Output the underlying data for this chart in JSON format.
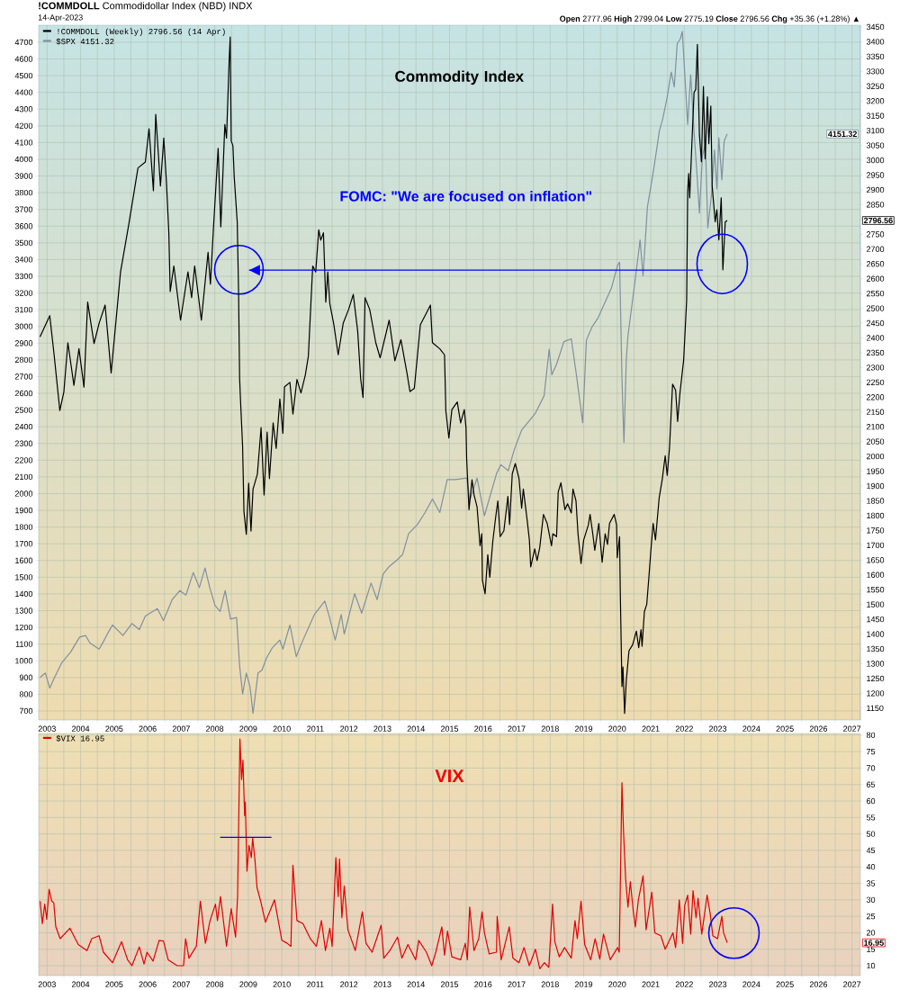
{
  "chart_data": [
    {
      "type": "line",
      "title": "**!COMMDOLL** Commodidollar Index (NBD) INDX",
      "subtitle": "14-Apr-2023",
      "annotations": [
        "**Open** 2777.96 **High** 2799.04 **Low** 2775.19 **Close** 2796.56 **Chg** +35.36 (+1.28%) ▲",
        "Commodity Index",
        "FOMC: \"We are focused on inflation\"",
        "4151.32",
        "2796.56"
      ],
      "xlim": [
        2002.75,
        2027.25
      ],
      "xticks": [
        2003,
        2004,
        2005,
        2006,
        2007,
        2008,
        2009,
        2010,
        2011,
        2012,
        2013,
        2014,
        2015,
        2016,
        2017,
        2018,
        2019,
        2020,
        2021,
        2022,
        2023,
        2024,
        2025,
        2026,
        2027
      ],
      "ylim": [
        646,
        4802
      ],
      "yticks": [
        700,
        800,
        900,
        1000,
        1100,
        1200,
        1300,
        1400,
        1500,
        1600,
        1700,
        1800,
        1900,
        2000,
        2100,
        2200,
        2300,
        2400,
        2500,
        2600,
        2700,
        2800,
        2900,
        3000,
        3100,
        3200,
        3300,
        3400,
        3500,
        3600,
        3700,
        3800,
        3900,
        4000,
        4100,
        4200,
        4300,
        4400,
        4500,
        4600,
        4700
      ],
      "y2lim": [
        1110,
        3456
      ],
      "y2ticks": [
        1150,
        1200,
        1250,
        1300,
        1350,
        1400,
        1450,
        1500,
        1550,
        1600,
        1650,
        1700,
        1750,
        1800,
        1850,
        1900,
        1950,
        2000,
        2050,
        2100,
        2150,
        2200,
        2250,
        2300,
        2350,
        2400,
        2450,
        2500,
        2550,
        2600,
        2650,
        2700,
        2750,
        2800,
        2850,
        2900,
        2950,
        3000,
        3050,
        3100,
        3150,
        3200,
        3250,
        3300,
        3350,
        3400,
        3450
      ],
      "grid": true,
      "legend": "top left",
      "series": [
        {
          "name": "!COMMDOLL (Weekly) 2796.56 (14 Apr)",
          "color": "#000000",
          "axis": "y2",
          "x": [
            2002.79,
            2003.08,
            2003.21,
            2003.38,
            2003.5,
            2003.62,
            2003.8,
            2003.95,
            2004.1,
            2004.21,
            2004.4,
            2004.55,
            2004.73,
            2004.91,
            2005.19,
            2005.44,
            2005.71,
            2005.93,
            2006.04,
            2006.17,
            2006.24,
            2006.38,
            2006.48,
            2006.56,
            2006.63,
            2006.67,
            2006.78,
            2006.98,
            2007.2,
            2007.31,
            2007.4,
            2007.6,
            2007.8,
            2007.87,
            2007.96,
            2008.1,
            2008.18,
            2008.3,
            2008.35,
            2008.43,
            2008.46,
            2008.49,
            2008.54,
            2008.58,
            2008.67,
            2008.71,
            2008.74,
            2008.76,
            2008.83,
            2008.87,
            2008.94,
            2009.01,
            2009.08,
            2009.14,
            2009.27,
            2009.38,
            2009.47,
            2009.56,
            2009.63,
            2009.74,
            2009.83,
            2009.94,
            2010.03,
            2010.08,
            2010.24,
            2010.33,
            2010.45,
            2010.57,
            2010.7,
            2010.79,
            2010.92,
            2011.01,
            2011.1,
            2011.16,
            2011.24,
            2011.31,
            2011.37,
            2011.43,
            2011.55,
            2011.68,
            2011.83,
            2011.99,
            2012.13,
            2012.26,
            2012.35,
            2012.42,
            2012.48,
            2012.62,
            2012.8,
            2012.93,
            2013.2,
            2013.37,
            2013.55,
            2013.73,
            2013.82,
            2013.95,
            2014.13,
            2014.27,
            2014.43,
            2014.49,
            2014.71,
            2014.85,
            2014.89,
            2014.98,
            2015.07,
            2015.23,
            2015.33,
            2015.44,
            2015.49,
            2015.51,
            2015.58,
            2015.67,
            2015.73,
            2015.82,
            2015.91,
            2015.96,
            2015.98,
            2016.06,
            2016.14,
            2016.2,
            2016.29,
            2016.38,
            2016.44,
            2016.51,
            2016.62,
            2016.74,
            2016.79,
            2016.87,
            2016.96,
            2017.07,
            2017.15,
            2017.2,
            2017.31,
            2017.38,
            2017.42,
            2017.54,
            2017.61,
            2017.69,
            2017.8,
            2017.91,
            2018.04,
            2018.08,
            2018.19,
            2018.24,
            2018.32,
            2018.44,
            2018.52,
            2018.63,
            2018.68,
            2018.77,
            2018.83,
            2018.92,
            2019.0,
            2019.14,
            2019.19,
            2019.27,
            2019.33,
            2019.45,
            2019.55,
            2019.64,
            2019.71,
            2019.77,
            2019.91,
            2019.98,
            2020.0,
            2020.07,
            2020.09,
            2020.14,
            2020.17,
            2020.22,
            2020.27,
            2020.35,
            2020.46,
            2020.57,
            2020.64,
            2020.71,
            2020.74,
            2020.81,
            2020.88,
            2020.94,
            2021.0,
            2021.07,
            2021.14,
            2021.25,
            2021.34,
            2021.43,
            2021.49,
            2021.56,
            2021.65,
            2021.74,
            2021.8,
            2021.87,
            2021.98,
            2022.07,
            2022.1,
            2022.13,
            2022.16,
            2022.22,
            2022.29,
            2022.34,
            2022.39,
            2022.45,
            2022.51,
            2022.57,
            2022.62,
            2022.69,
            2022.73,
            2022.79,
            2022.83,
            2022.92,
            2022.97,
            2023.03,
            2023.1,
            2023.15,
            2023.22,
            2023.28
          ],
          "values": [
            2404,
            2475,
            2343,
            2155,
            2217,
            2384,
            2240,
            2364,
            2234,
            2521,
            2381,
            2449,
            2511,
            2282,
            2623,
            2786,
            2974,
            2994,
            3106,
            2897,
            3155,
            2913,
            3075,
            2923,
            2755,
            2557,
            2643,
            2460,
            2623,
            2536,
            2643,
            2460,
            2689,
            2582,
            2770,
            3040,
            2775,
            3121,
            3075,
            3340,
            3416,
            3065,
            3050,
            2943,
            2791,
            2552,
            2267,
            2209,
            2032,
            1814,
            1737,
            1910,
            1748,
            1889,
            1940,
            2097,
            1870,
            2082,
            1925,
            2113,
            2027,
            2194,
            2078,
            2235,
            2250,
            2143,
            2260,
            2214,
            2275,
            2338,
            2643,
            2623,
            2765,
            2730,
            2755,
            2521,
            2623,
            2516,
            2445,
            2343,
            2450,
            2496,
            2547,
            2424,
            2262,
            2199,
            2536,
            2496,
            2384,
            2333,
            2460,
            2323,
            2394,
            2282,
            2219,
            2230,
            2445,
            2475,
            2511,
            2384,
            2363,
            2343,
            2153,
            2062,
            2158,
            2184,
            2113,
            2158,
            2098,
            1992,
            1820,
            1921,
            1870,
            1830,
            1698,
            1739,
            1582,
            1536,
            1668,
            1592,
            1714,
            1799,
            1850,
            1729,
            1749,
            1865,
            1770,
            1941,
            1976,
            1926,
            1825,
            1890,
            1789,
            1718,
            1627,
            1688,
            1648,
            1693,
            1804,
            1774,
            1698,
            1739,
            1729,
            1880,
            1911,
            1820,
            1840,
            1809,
            1890,
            1850,
            1739,
            1638,
            1718,
            1769,
            1804,
            1739,
            1683,
            1774,
            1643,
            1739,
            1703,
            1774,
            1804,
            1769,
            1658,
            1729,
            1547,
            1223,
            1289,
            1132,
            1243,
            1344,
            1364,
            1410,
            1354,
            1415,
            1359,
            1476,
            1501,
            1587,
            1678,
            1774,
            1718,
            1860,
            1921,
            2002,
            1936,
            2032,
            2244,
            2224,
            2118,
            2214,
            2325,
            2528,
            2894,
            2955,
            2873,
            3041,
            3229,
            3239,
            3391,
            3087,
            2995,
            3249,
            3005,
            3214,
            3056,
            3183,
            2914,
            2792,
            2833,
            2731,
            2873,
            2630,
            2792,
            2796.56
          ]
        },
        {
          "name": "$SPX 4151.32",
          "color": "#8090a0",
          "axis": "y",
          "x": [
            2002.79,
            2002.95,
            2003.08,
            2003.2,
            2003.35,
            2003.44,
            2003.7,
            2003.97,
            2004.15,
            2004.28,
            2004.55,
            2004.68,
            2004.82,
            2004.95,
            2005.13,
            2005.26,
            2005.53,
            2005.75,
            2005.93,
            2006.29,
            2006.47,
            2006.73,
            2006.96,
            2007.14,
            2007.36,
            2007.54,
            2007.71,
            2007.85,
            2008.01,
            2008.16,
            2008.31,
            2008.47,
            2008.65,
            2008.74,
            2008.83,
            2008.94,
            2009.05,
            2009.14,
            2009.29,
            2009.41,
            2009.54,
            2009.72,
            2009.94,
            2010.03,
            2010.24,
            2010.43,
            2010.61,
            2010.97,
            2011.28,
            2011.41,
            2011.59,
            2011.77,
            2011.86,
            2012.17,
            2012.38,
            2012.66,
            2012.84,
            2013.02,
            2013.2,
            2013.42,
            2013.6,
            2013.78,
            2014.04,
            2014.27,
            2014.49,
            2014.71,
            2014.93,
            2015.16,
            2015.51,
            2015.6,
            2015.82,
            2016.04,
            2016.4,
            2016.53,
            2016.75,
            2016.93,
            2017.15,
            2017.55,
            2017.82,
            2017.97,
            2018.05,
            2018.19,
            2018.41,
            2018.63,
            2018.77,
            2018.97,
            2019.08,
            2019.25,
            2019.43,
            2019.61,
            2019.83,
            2020.01,
            2020.07,
            2020.14,
            2020.2,
            2020.27,
            2020.32,
            2020.54,
            2020.68,
            2020.77,
            2020.9,
            2021.08,
            2021.26,
            2021.35,
            2021.48,
            2021.61,
            2021.7,
            2021.79,
            2021.88,
            2021.94,
            2022.01,
            2022.1,
            2022.19,
            2022.29,
            2022.38,
            2022.45,
            2022.54,
            2022.63,
            2022.7,
            2022.81,
            2022.9,
            2022.97,
            2023.03,
            2023.12,
            2023.19,
            2023.28
          ],
          "values": [
            900,
            927,
            837,
            891,
            953,
            989,
            1052,
            1142,
            1151,
            1106,
            1070,
            1115,
            1169,
            1214,
            1178,
            1151,
            1223,
            1187,
            1268,
            1312,
            1241,
            1366,
            1420,
            1393,
            1528,
            1438,
            1555,
            1438,
            1330,
            1295,
            1420,
            1250,
            1259,
            971,
            801,
            927,
            846,
            685,
            927,
            945,
            1016,
            1079,
            1124,
            1070,
            1214,
            1025,
            1115,
            1277,
            1357,
            1268,
            1124,
            1277,
            1160,
            1402,
            1285,
            1465,
            1366,
            1519,
            1564,
            1600,
            1636,
            1761,
            1815,
            1887,
            1968,
            1887,
            2084,
            2084,
            2093,
            1958,
            2093,
            1868,
            2119,
            2173,
            2137,
            2263,
            2380,
            2478,
            2586,
            2864,
            2711,
            2774,
            2909,
            2926,
            2729,
            2424,
            2917,
            2998,
            3052,
            3133,
            3231,
            3366,
            3384,
            2693,
            2306,
            2801,
            2946,
            3285,
            3518,
            3303,
            3715,
            3931,
            4173,
            4236,
            4361,
            4522,
            4433,
            4693,
            4720,
            4765,
            4522,
            4209,
            4505,
            4164,
            3904,
            3679,
            4021,
            4092,
            3590,
            3787,
            4056,
            3823,
            4128,
            3877,
            4110,
            4151.32
          ]
        },
        {
          "color": "#0000ff",
          "axis": "y2",
          "x": [
            2022.55,
            2009.02
          ],
          "values": [
            2629,
            2629
          ]
        }
      ]
    },
    {
      "type": "line",
      "annotations": [
        "VIX",
        "16.95"
      ],
      "xlim": [
        2002.75,
        2027.25
      ],
      "xticks": [
        2003,
        2004,
        2005,
        2006,
        2007,
        2008,
        2009,
        2010,
        2011,
        2012,
        2013,
        2014,
        2015,
        2016,
        2017,
        2018,
        2019,
        2020,
        2021,
        2022,
        2023,
        2024,
        2025,
        2026,
        2027
      ],
      "y2lim": [
        7,
        80.5
      ],
      "y2ticks": [
        10,
        15,
        20,
        25,
        30,
        35,
        40,
        45,
        50,
        55,
        60,
        65,
        70,
        75,
        80
      ],
      "grid": true,
      "legend": "top left",
      "series": [
        {
          "name": "$VIX 16.95",
          "color": "#e00000",
          "axis": "y2",
          "x": [
            2002.79,
            2002.86,
            2002.93,
            2002.99,
            2003.06,
            2003.14,
            2003.2,
            2003.26,
            2003.39,
            2003.68,
            2003.93,
            2004.19,
            2004.33,
            2004.55,
            2004.68,
            2004.95,
            2005.22,
            2005.4,
            2005.53,
            2005.75,
            2005.89,
            2005.98,
            2006.16,
            2006.34,
            2006.47,
            2006.61,
            2006.88,
            2007.07,
            2007.13,
            2007.23,
            2007.45,
            2007.57,
            2007.72,
            2007.86,
            2008.02,
            2008.08,
            2008.17,
            2008.35,
            2008.49,
            2008.62,
            2008.68,
            2008.75,
            2008.8,
            2008.84,
            2008.89,
            2008.91,
            2008.96,
            2009.02,
            2009.09,
            2009.13,
            2009.2,
            2009.26,
            2009.38,
            2009.51,
            2009.78,
            2010.0,
            2010.16,
            2010.27,
            2010.33,
            2010.45,
            2010.63,
            2010.85,
            2011.03,
            2011.18,
            2011.3,
            2011.43,
            2011.5,
            2011.61,
            2011.68,
            2011.72,
            2011.79,
            2011.86,
            2011.97,
            2012.19,
            2012.4,
            2012.51,
            2012.69,
            2012.96,
            2013.04,
            2013.22,
            2013.45,
            2013.58,
            2013.76,
            2013.99,
            2014.08,
            2014.31,
            2014.47,
            2014.59,
            2014.77,
            2014.85,
            2014.94,
            2015.07,
            2015.33,
            2015.47,
            2015.53,
            2015.6,
            2015.73,
            2015.87,
            2015.97,
            2016.04,
            2016.18,
            2016.4,
            2016.42,
            2016.54,
            2016.78,
            2016.89,
            2017.07,
            2017.22,
            2017.38,
            2017.56,
            2017.69,
            2017.83,
            2017.96,
            2018.07,
            2018.14,
            2018.27,
            2018.43,
            2018.63,
            2018.74,
            2018.81,
            2018.92,
            2019.03,
            2019.21,
            2019.34,
            2019.48,
            2019.59,
            2019.79,
            2020.01,
            2020.06,
            2020.1,
            2020.14,
            2020.19,
            2020.25,
            2020.32,
            2020.39,
            2020.48,
            2020.54,
            2020.63,
            2020.77,
            2020.86,
            2021.03,
            2021.12,
            2021.3,
            2021.43,
            2021.66,
            2021.74,
            2021.85,
            2021.95,
            2022.01,
            2022.1,
            2022.19,
            2022.26,
            2022.35,
            2022.41,
            2022.52,
            2022.68,
            2022.77,
            2022.85,
            2022.99,
            2023.12,
            2023.17,
            2023.28
          ],
          "values": [
            29.6,
            22.8,
            28.7,
            24.1,
            33.2,
            29.6,
            29.1,
            21.8,
            18.2,
            21.4,
            16.4,
            14.6,
            18.2,
            19.1,
            14.1,
            10.9,
            17.3,
            11.8,
            10.0,
            15.7,
            10.5,
            14.1,
            11.4,
            17.7,
            17.5,
            11.8,
            10.0,
            10.0,
            18.2,
            12.3,
            15.9,
            29.6,
            16.8,
            23.7,
            28.7,
            23.7,
            31.0,
            15.9,
            27.3,
            18.7,
            31.0,
            78.8,
            66.5,
            72.4,
            55.6,
            59.7,
            38.7,
            46.5,
            42.8,
            48.7,
            41.9,
            33.7,
            29.1,
            23.2,
            30.0,
            17.7,
            16.8,
            15.9,
            40.5,
            23.7,
            22.8,
            18.2,
            15.9,
            23.7,
            14.6,
            21.4,
            15.9,
            42.8,
            31.0,
            42.4,
            24.6,
            34.2,
            20.9,
            14.6,
            26.4,
            16.8,
            14.1,
            22.3,
            12.3,
            14.6,
            18.7,
            12.3,
            16.4,
            11.8,
            17.7,
            14.1,
            10.0,
            14.1,
            21.8,
            13.2,
            20.5,
            12.7,
            11.8,
            16.8,
            11.8,
            27.8,
            14.6,
            18.2,
            26.4,
            20.0,
            13.6,
            14.1,
            25.0,
            11.8,
            21.8,
            12.3,
            10.9,
            15.5,
            10.0,
            15.0,
            9.1,
            10.9,
            9.5,
            28.7,
            17.3,
            12.7,
            15.5,
            12.3,
            23.7,
            18.2,
            29.6,
            16.4,
            11.8,
            18.2,
            12.0,
            19.6,
            11.8,
            15.5,
            14.1,
            40.1,
            65.6,
            50.1,
            36.4,
            27.8,
            35.5,
            26.4,
            21.8,
            30.0,
            37.3,
            20.9,
            32.3,
            20.0,
            19.1,
            15.0,
            20.0,
            15.5,
            30.0,
            16.8,
            28.2,
            31.4,
            19.6,
            32.8,
            24.6,
            30.5,
            19.6,
            31.4,
            25.9,
            19.1,
            18.2,
            25.0,
            20.0,
            16.95
          ]
        },
        {
          "color": "#0000ff",
          "axis": "y2",
          "x": [
            2008.16,
            2009.69
          ],
          "values": [
            49,
            49
          ]
        }
      ]
    }
  ]
}
